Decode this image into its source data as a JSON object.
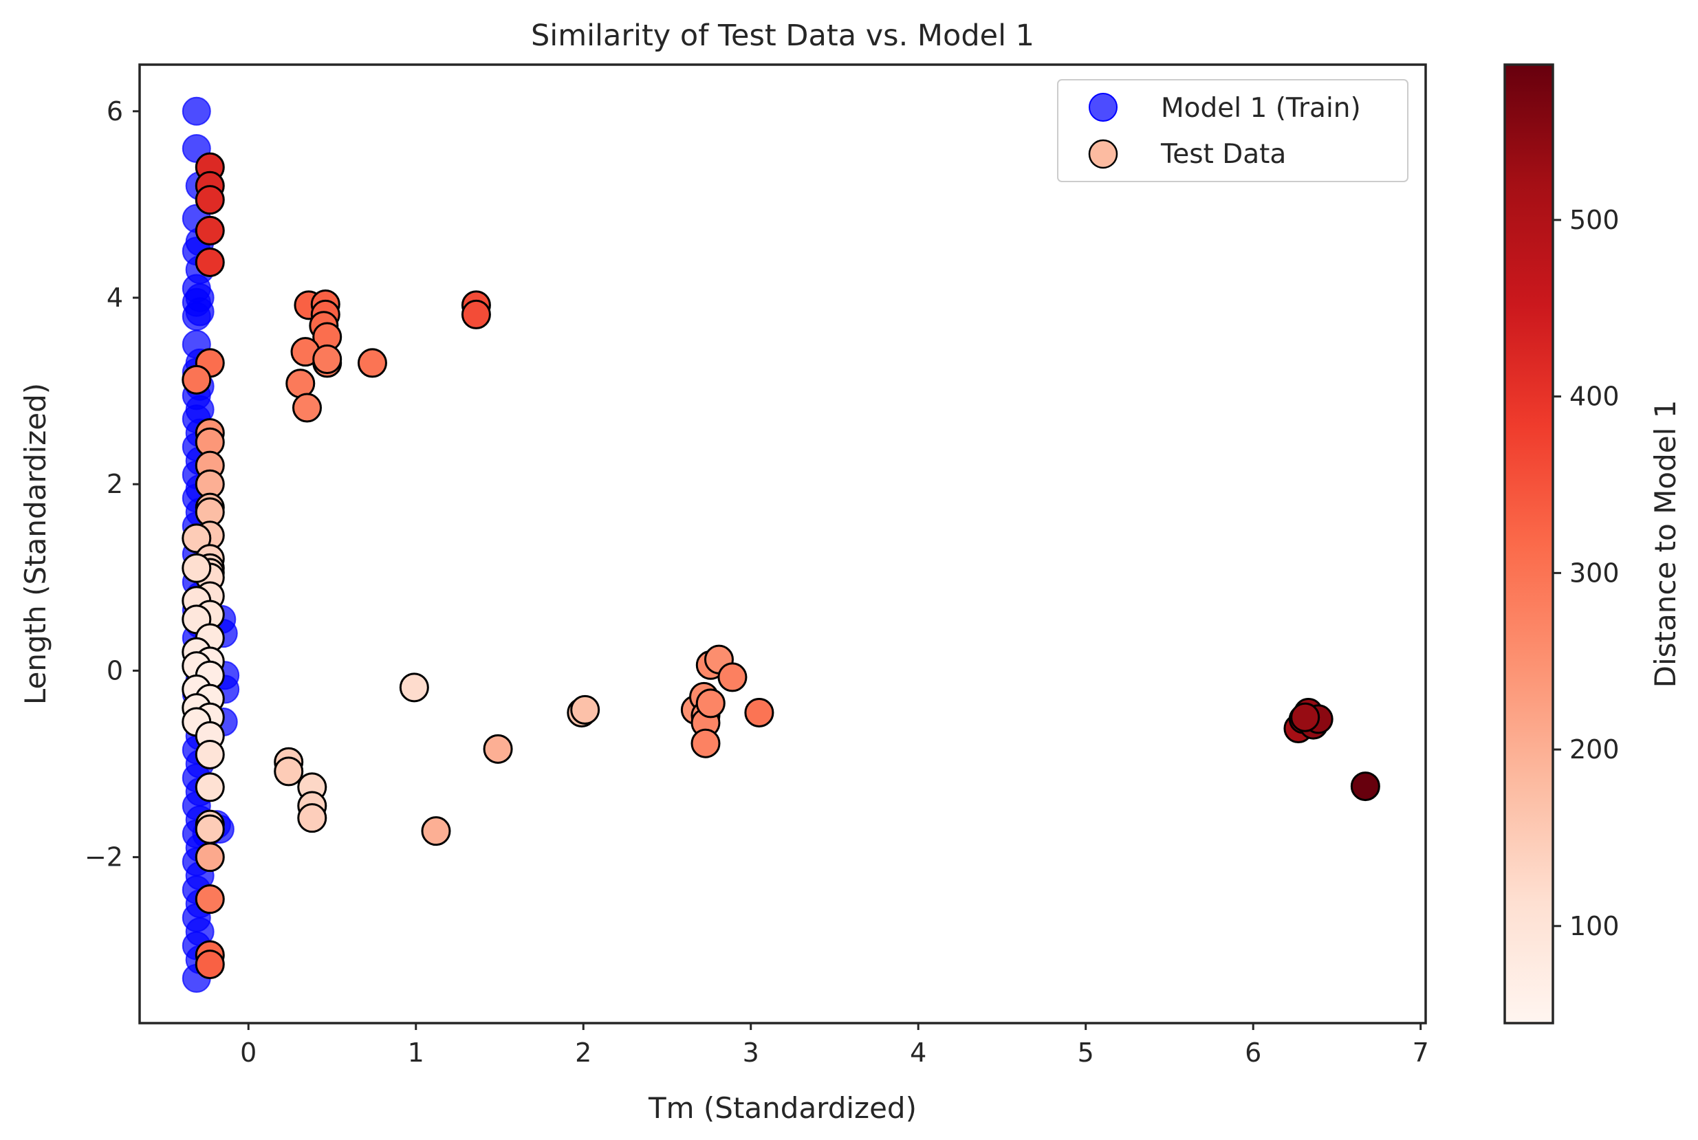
{
  "chart_data": {
    "type": "scatter",
    "title": "Similarity of Test Data vs. Model 1",
    "xlabel": "Tm (Standardized)",
    "ylabel": "Length (Standardized)",
    "xlim": [
      -0.65,
      7.03
    ],
    "ylim": [
      -3.78,
      6.5
    ],
    "x_ticks": [
      0,
      1,
      2,
      3,
      4,
      5,
      6,
      7
    ],
    "y_ticks": [
      -2,
      0,
      2,
      4,
      6
    ],
    "x_tick_labels": [
      "0",
      "1",
      "2",
      "3",
      "4",
      "5",
      "6",
      "7"
    ],
    "y_tick_labels": [
      "−2",
      "0",
      "2",
      "4",
      "6"
    ],
    "grid": false,
    "legend_position": "top-right",
    "colorbar": {
      "label": "Distance to Model 1",
      "range": [
        45,
        588
      ],
      "ticks": [
        100,
        200,
        300,
        400,
        500
      ],
      "tick_labels": [
        "100",
        "200",
        "300",
        "400",
        "500"
      ],
      "colormap": "Reds"
    },
    "series": [
      {
        "name": "Model 1 (Train)",
        "color": "#0000ff",
        "points": [
          [
            -0.31,
            6.0
          ],
          [
            -0.31,
            5.6
          ],
          [
            -0.29,
            5.2
          ],
          [
            -0.31,
            4.85
          ],
          [
            -0.29,
            4.6
          ],
          [
            -0.31,
            4.5
          ],
          [
            -0.29,
            4.3
          ],
          [
            -0.31,
            4.1
          ],
          [
            -0.29,
            4.0
          ],
          [
            -0.31,
            3.95
          ],
          [
            -0.29,
            3.85
          ],
          [
            -0.31,
            3.8
          ],
          [
            -0.31,
            3.5
          ],
          [
            -0.29,
            3.3
          ],
          [
            -0.31,
            3.2
          ],
          [
            -0.29,
            3.05
          ],
          [
            -0.31,
            2.95
          ],
          [
            -0.29,
            2.8
          ],
          [
            -0.31,
            2.7
          ],
          [
            -0.29,
            2.55
          ],
          [
            -0.31,
            2.4
          ],
          [
            -0.29,
            2.25
          ],
          [
            -0.31,
            2.1
          ],
          [
            -0.29,
            1.95
          ],
          [
            -0.31,
            1.85
          ],
          [
            -0.29,
            1.7
          ],
          [
            -0.31,
            1.55
          ],
          [
            -0.29,
            1.4
          ],
          [
            -0.31,
            1.25
          ],
          [
            -0.29,
            1.1
          ],
          [
            -0.31,
            0.95
          ],
          [
            -0.29,
            0.8
          ],
          [
            -0.31,
            0.65
          ],
          [
            -0.29,
            0.5
          ],
          [
            -0.31,
            0.35
          ],
          [
            -0.29,
            0.2
          ],
          [
            -0.31,
            0.05
          ],
          [
            -0.29,
            -0.1
          ],
          [
            -0.31,
            -0.25
          ],
          [
            -0.29,
            -0.4
          ],
          [
            -0.31,
            -0.55
          ],
          [
            -0.29,
            -0.7
          ],
          [
            -0.31,
            -0.85
          ],
          [
            -0.29,
            -1.0
          ],
          [
            -0.31,
            -1.15
          ],
          [
            -0.29,
            -1.3
          ],
          [
            -0.31,
            -1.45
          ],
          [
            -0.29,
            -1.6
          ],
          [
            -0.31,
            -1.75
          ],
          [
            -0.29,
            -1.9
          ],
          [
            -0.31,
            -2.05
          ],
          [
            -0.29,
            -2.2
          ],
          [
            -0.31,
            -2.35
          ],
          [
            -0.29,
            -2.5
          ],
          [
            -0.31,
            -2.65
          ],
          [
            -0.29,
            -2.8
          ],
          [
            -0.31,
            -2.95
          ],
          [
            -0.29,
            -3.1
          ],
          [
            -0.31,
            -3.3
          ],
          [
            -0.16,
            0.55
          ],
          [
            -0.15,
            0.4
          ],
          [
            -0.14,
            -0.05
          ],
          [
            -0.14,
            -0.2
          ],
          [
            -0.15,
            -0.55
          ],
          [
            -0.17,
            -1.7
          ],
          [
            -0.19,
            -1.65
          ],
          [
            -0.25,
            -1.75
          ]
        ]
      },
      {
        "name": "Test Data",
        "color": "#fcbba1",
        "points": [
          [
            -0.23,
            5.4,
            420
          ],
          [
            -0.23,
            5.2,
            420
          ],
          [
            -0.23,
            5.05,
            415
          ],
          [
            -0.23,
            4.72,
            410
          ],
          [
            -0.23,
            4.38,
            400
          ],
          [
            -0.23,
            3.3,
            310
          ],
          [
            -0.31,
            3.12,
            300
          ],
          [
            -0.23,
            2.55,
            250
          ],
          [
            -0.23,
            2.45,
            240
          ],
          [
            -0.23,
            2.2,
            220
          ],
          [
            -0.23,
            2.0,
            200
          ],
          [
            -0.23,
            1.75,
            180
          ],
          [
            -0.23,
            1.7,
            175
          ],
          [
            -0.23,
            1.45,
            160
          ],
          [
            -0.31,
            1.42,
            150
          ],
          [
            -0.23,
            1.2,
            140
          ],
          [
            -0.23,
            1.1,
            130
          ],
          [
            -0.23,
            1.05,
            125
          ],
          [
            -0.23,
            1.0,
            120
          ],
          [
            -0.31,
            1.1,
            115
          ],
          [
            -0.23,
            0.8,
            105
          ],
          [
            -0.31,
            0.75,
            100
          ],
          [
            -0.23,
            0.6,
            95
          ],
          [
            -0.31,
            0.55,
            90
          ],
          [
            -0.23,
            0.35,
            85
          ],
          [
            -0.31,
            0.2,
            80
          ],
          [
            -0.23,
            0.1,
            75
          ],
          [
            -0.31,
            0.05,
            75
          ],
          [
            -0.23,
            -0.05,
            70
          ],
          [
            -0.31,
            -0.2,
            70
          ],
          [
            -0.23,
            -0.3,
            72
          ],
          [
            -0.31,
            -0.4,
            72
          ],
          [
            -0.23,
            -0.5,
            75
          ],
          [
            -0.31,
            -0.55,
            75
          ],
          [
            -0.23,
            -0.7,
            80
          ],
          [
            -0.23,
            -0.9,
            100
          ],
          [
            -0.23,
            -1.25,
            110
          ],
          [
            -0.23,
            -1.65,
            140
          ],
          [
            -0.23,
            -1.7,
            150
          ],
          [
            -0.23,
            -2.0,
            210
          ],
          [
            -0.23,
            -2.45,
            290
          ],
          [
            -0.23,
            -3.05,
            320
          ],
          [
            -0.23,
            -3.15,
            330
          ],
          [
            0.36,
            3.92,
            330
          ],
          [
            0.46,
            3.93,
            330
          ],
          [
            0.46,
            3.82,
            330
          ],
          [
            0.45,
            3.7,
            320
          ],
          [
            0.47,
            3.58,
            310
          ],
          [
            0.34,
            3.42,
            300
          ],
          [
            0.47,
            3.3,
            290
          ],
          [
            0.47,
            3.34,
            290
          ],
          [
            0.74,
            3.3,
            300
          ],
          [
            0.31,
            3.08,
            290
          ],
          [
            0.35,
            2.82,
            280
          ],
          [
            1.36,
            3.92,
            360
          ],
          [
            1.36,
            3.82,
            360
          ],
          [
            0.24,
            -0.98,
            150
          ],
          [
            0.24,
            -1.08,
            150
          ],
          [
            0.38,
            -1.25,
            130
          ],
          [
            0.38,
            -1.45,
            140
          ],
          [
            0.38,
            -1.58,
            145
          ],
          [
            0.99,
            -0.18,
            120
          ],
          [
            1.12,
            -1.72,
            200
          ],
          [
            1.49,
            -0.84,
            200
          ],
          [
            1.99,
            -0.45,
            165
          ],
          [
            2.01,
            -0.42,
            170
          ],
          [
            2.67,
            -0.42,
            250
          ],
          [
            2.72,
            -0.28,
            260
          ],
          [
            2.73,
            -0.48,
            260
          ],
          [
            2.73,
            -0.56,
            270
          ],
          [
            2.73,
            -0.78,
            275
          ],
          [
            2.76,
            -0.35,
            270
          ],
          [
            2.76,
            0.06,
            265
          ],
          [
            2.81,
            0.12,
            255
          ],
          [
            2.89,
            -0.07,
            280
          ],
          [
            3.05,
            -0.45,
            300
          ],
          [
            6.27,
            -0.62,
            520
          ],
          [
            6.3,
            -0.52,
            530
          ],
          [
            6.33,
            -0.45,
            540
          ],
          [
            6.36,
            -0.58,
            545
          ],
          [
            6.39,
            -0.52,
            550
          ],
          [
            6.31,
            -0.5,
            535
          ],
          [
            6.67,
            -1.24,
            588
          ]
        ]
      }
    ]
  }
}
